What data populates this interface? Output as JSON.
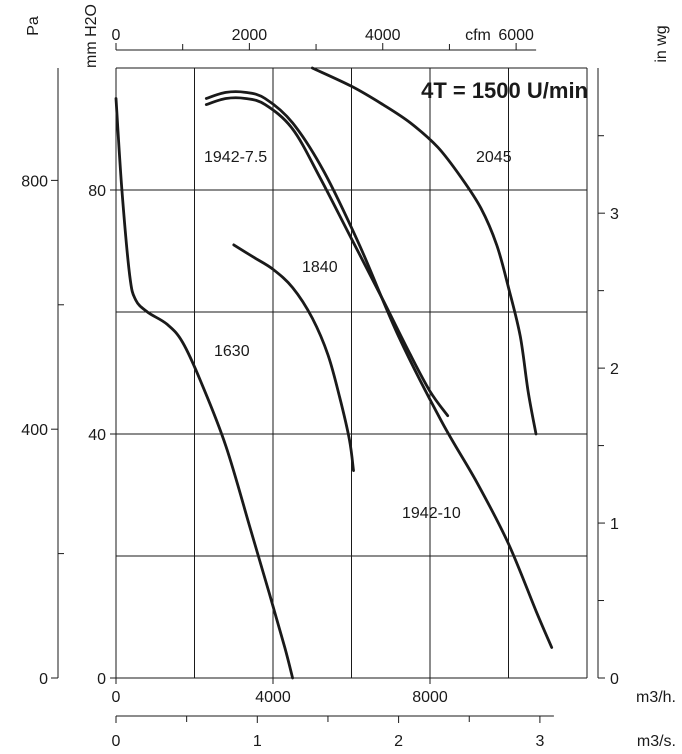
{
  "chart_data": {
    "type": "line",
    "title": "4T = 1500 U/min",
    "axes": {
      "pa_unit": "Pa",
      "mmh2o_unit": "mm H2O",
      "inwg_unit": "in wg",
      "cfm_unit": "cfm",
      "m3h_unit": "m3/h.",
      "m3s_unit": "m3/s.",
      "pa_ticks": [
        "0",
        "400",
        "800"
      ],
      "mmh2o_ticks": [
        "0",
        "40",
        "80"
      ],
      "inwg_ticks": [
        "0",
        "1",
        "2",
        "3"
      ],
      "cfm_ticks": [
        "0",
        "2000",
        "4000",
        "6000"
      ],
      "m3h_ticks": [
        "0",
        "4000",
        "8000"
      ],
      "m3s_ticks": [
        "0",
        "1",
        "2",
        "3"
      ]
    },
    "xlim_m3h": [
      0,
      12000
    ],
    "ylim_mmh2o": [
      0,
      100
    ],
    "grid": true,
    "series": [
      {
        "name": "1630",
        "x_m3h": [
          0,
          150,
          350,
          500,
          800,
          1300,
          1700,
          2200,
          2800,
          3400,
          3900,
          4300,
          4500
        ],
        "y_mmh2o": [
          95,
          80,
          66,
          62,
          60,
          58,
          55,
          48,
          38,
          25,
          14,
          5,
          0
        ]
      },
      {
        "name": "1840",
        "x_m3h": [
          3000,
          3500,
          4000,
          4500,
          5000,
          5400,
          5700,
          5950,
          6050
        ],
        "y_mmh2o": [
          71,
          69,
          67,
          64,
          59,
          53,
          46,
          39,
          34
        ]
      },
      {
        "name": "1942-7.5",
        "x_m3h": [
          2300,
          2800,
          3300,
          3800,
          4500,
          5200,
          6000,
          6800,
          7500,
          8000,
          8450
        ],
        "y_mmh2o": [
          94,
          95,
          95,
          94,
          90,
          82,
          72,
          62,
          53,
          47,
          43
        ]
      },
      {
        "name": "1942-10",
        "x_m3h": [
          2300,
          2800,
          3300,
          3800,
          4500,
          5300,
          6200,
          7200,
          8300,
          9200,
          10000,
          10700,
          11100
        ],
        "y_mmh2o": [
          95,
          96,
          96,
          95,
          91,
          83,
          71,
          56,
          42,
          32,
          22,
          11,
          5
        ]
      },
      {
        "name": "2045",
        "x_m3h": [
          5000,
          6000,
          6800,
          7500,
          8200,
          8800,
          9300,
          9700,
          10000,
          10300,
          10500,
          10700
        ],
        "y_mmh2o": [
          100,
          97,
          94,
          91,
          87,
          82,
          77,
          71,
          64,
          56,
          47,
          40
        ]
      }
    ]
  }
}
